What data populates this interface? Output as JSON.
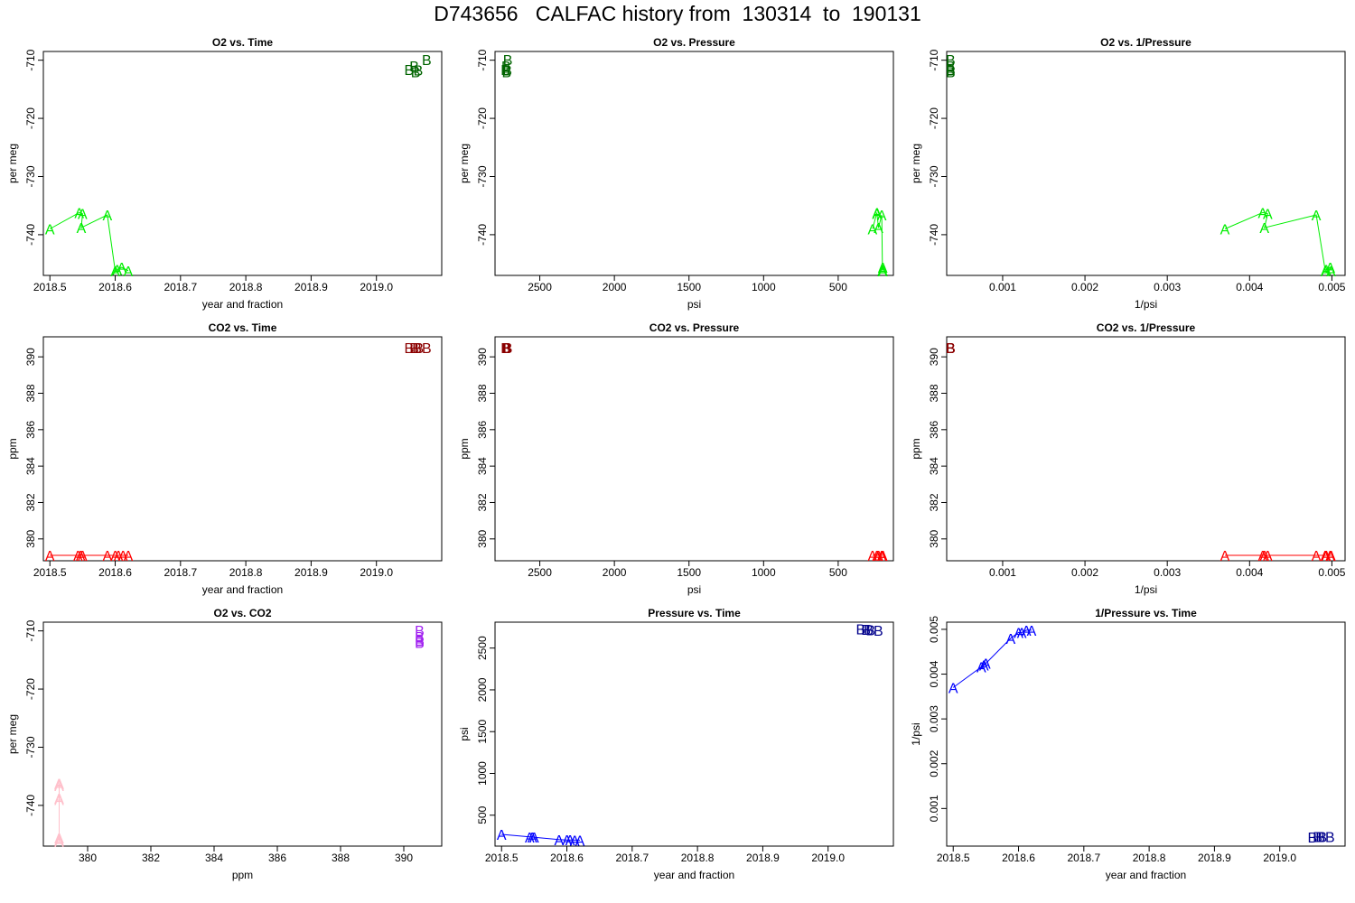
{
  "title": "D743656   CALFAC history from  130314  to  190131",
  "colors": {
    "o2_A": "#00ee00",
    "o2_B": "#006400",
    "co2_A": "#ff0000",
    "co2_B": "#8b0000",
    "o2co2_A": "#ffc0cb",
    "o2co2_B": "#a020f0",
    "p_A": "#0000ff",
    "p_B": "#00008b"
  },
  "chart_data": [
    {
      "type": "scatter",
      "title": "O2 vs. Time",
      "xlabel": "year and fraction",
      "ylabel": "per meg",
      "xlim": [
        2018.49,
        2019.1
      ],
      "ylim": [
        -747,
        -708.5
      ],
      "xticks": [
        "2018.5",
        "2018.6",
        "2018.7",
        "2018.8",
        "2018.9",
        "2019.0"
      ],
      "yticks": [
        "-710",
        "-720",
        "-730",
        "-740"
      ],
      "series": [
        {
          "label": "A",
          "color_key": "o2_A",
          "connected": true,
          "x": [
            2018.5,
            2018.545,
            2018.55,
            2018.548,
            2018.588,
            2018.6,
            2018.603,
            2018.61,
            2018.62
          ],
          "y": [
            -739.0,
            -736.2,
            -736.4,
            -738.8,
            -736.6,
            -746.2,
            -746.0,
            -745.6,
            -746.2
          ]
        },
        {
          "label": "B",
          "color_key": "o2_B",
          "connected": false,
          "x": [
            2019.05,
            2019.058,
            2019.06,
            2019.064,
            2019.077
          ],
          "y": [
            -711.6,
            -711.0,
            -712.0,
            -711.7,
            -709.9
          ]
        }
      ]
    },
    {
      "type": "scatter",
      "title": "O2 vs. Pressure",
      "xlabel": "psi",
      "ylabel": "per meg",
      "xlim": [
        2800,
        130
      ],
      "ylim": [
        -747,
        -708.5
      ],
      "xticks": [
        "2500",
        "2000",
        "1500",
        "1000",
        "500"
      ],
      "yticks": [
        "-710",
        "-720",
        "-730",
        "-740"
      ],
      "series": [
        {
          "label": "A",
          "color_key": "o2_A",
          "connected": true,
          "x": [
            270,
            240,
            240,
            230,
            208,
            203,
            203,
            201,
            201
          ],
          "y": [
            -739.0,
            -736.2,
            -736.4,
            -738.8,
            -736.6,
            -746.2,
            -746.0,
            -745.6,
            -746.2
          ]
        },
        {
          "label": "B",
          "color_key": "o2_B",
          "connected": false,
          "x": [
            2730,
            2725,
            2722,
            2718,
            2715
          ],
          "y": [
            -711.6,
            -711.0,
            -712.0,
            -711.7,
            -709.9
          ]
        }
      ]
    },
    {
      "type": "scatter",
      "title": "O2 vs. 1/Pressure",
      "xlabel": "1/psi",
      "ylabel": "per meg",
      "xlim": [
        0.00032,
        0.00516
      ],
      "ylim": [
        -747,
        -708.5
      ],
      "xticks": [
        "0.001",
        "0.002",
        "0.003",
        "0.004",
        "0.005"
      ],
      "yticks": [
        "-710",
        "-720",
        "-730",
        "-740"
      ],
      "series": [
        {
          "label": "A",
          "color_key": "o2_A",
          "connected": true,
          "x": [
            0.0037,
            0.00416,
            0.00422,
            0.00418,
            0.00481,
            0.00492,
            0.00493,
            0.00498,
            0.00499
          ],
          "y": [
            -739.0,
            -736.2,
            -736.4,
            -738.8,
            -736.6,
            -746.2,
            -746.0,
            -745.6,
            -746.2
          ]
        },
        {
          "label": "B",
          "color_key": "o2_B",
          "connected": false,
          "x": [
            0.000366,
            0.000367,
            0.000367,
            0.000368,
            0.000368
          ],
          "y": [
            -711.6,
            -711.0,
            -712.0,
            -711.7,
            -709.9
          ]
        }
      ]
    },
    {
      "type": "scatter",
      "title": "CO2 vs. Time",
      "xlabel": "year and fraction",
      "ylabel": "ppm",
      "xlim": [
        2018.49,
        2019.1
      ],
      "ylim": [
        378.8,
        391.1
      ],
      "xticks": [
        "2018.5",
        "2018.6",
        "2018.7",
        "2018.8",
        "2018.9",
        "2019.0"
      ],
      "yticks": [
        "380",
        "382",
        "384",
        "386",
        "388",
        "390"
      ],
      "series": [
        {
          "label": "A",
          "color_key": "co2_A",
          "connected": true,
          "x": [
            2018.5,
            2018.543,
            2018.547,
            2018.55,
            2018.588,
            2018.6,
            2018.605,
            2018.612,
            2018.62
          ],
          "y": [
            379.1,
            379.1,
            379.1,
            379.1,
            379.1,
            379.1,
            379.1,
            379.1,
            379.1
          ]
        },
        {
          "label": "B",
          "color_key": "co2_B",
          "connected": false,
          "x": [
            2019.05,
            2019.058,
            2019.062,
            2019.065,
            2019.077
          ],
          "y": [
            390.5,
            390.5,
            390.5,
            390.5,
            390.5
          ]
        }
      ]
    },
    {
      "type": "scatter",
      "title": "CO2 vs. Pressure",
      "xlabel": "psi",
      "ylabel": "ppm",
      "xlim": [
        2800,
        130
      ],
      "ylim": [
        378.8,
        391.1
      ],
      "xticks": [
        "2500",
        "2000",
        "1500",
        "1000",
        "500"
      ],
      "yticks": [
        "380",
        "382",
        "384",
        "386",
        "388",
        "390"
      ],
      "series": [
        {
          "label": "A",
          "color_key": "co2_A",
          "connected": true,
          "x": [
            270,
            240,
            240,
            230,
            208,
            203,
            203,
            201,
            201
          ],
          "y": [
            379.1,
            379.1,
            379.1,
            379.1,
            379.1,
            379.1,
            379.1,
            379.1,
            379.1
          ]
        },
        {
          "label": "B",
          "color_key": "co2_B",
          "connected": false,
          "x": [
            2730,
            2725,
            2722,
            2718,
            2715
          ],
          "y": [
            390.5,
            390.5,
            390.5,
            390.5,
            390.5
          ]
        }
      ]
    },
    {
      "type": "scatter",
      "title": "CO2 vs. 1/Pressure",
      "xlabel": "1/psi",
      "ylabel": "ppm",
      "xlim": [
        0.00032,
        0.00516
      ],
      "ylim": [
        378.8,
        391.1
      ],
      "xticks": [
        "0.001",
        "0.002",
        "0.003",
        "0.004",
        "0.005"
      ],
      "yticks": [
        "380",
        "382",
        "384",
        "386",
        "388",
        "390"
      ],
      "series": [
        {
          "label": "A",
          "color_key": "co2_A",
          "connected": true,
          "x": [
            0.0037,
            0.00416,
            0.00422,
            0.00418,
            0.00481,
            0.00492,
            0.00493,
            0.00498,
            0.00499
          ],
          "y": [
            379.1,
            379.1,
            379.1,
            379.1,
            379.1,
            379.1,
            379.1,
            379.1,
            379.1
          ]
        },
        {
          "label": "B",
          "color_key": "co2_B",
          "connected": false,
          "x": [
            0.000366,
            0.000367,
            0.000367,
            0.000368,
            0.000368
          ],
          "y": [
            390.5,
            390.5,
            390.5,
            390.5,
            390.5
          ]
        }
      ]
    },
    {
      "type": "scatter",
      "title": "O2 vs. CO2",
      "xlabel": "ppm",
      "ylabel": "per meg",
      "xlim": [
        378.6,
        391.2
      ],
      "ylim": [
        -747,
        -708.5
      ],
      "xticks": [
        "380",
        "382",
        "384",
        "386",
        "388",
        "390"
      ],
      "yticks": [
        "-710",
        "-720",
        "-730",
        "-740"
      ],
      "series": [
        {
          "label": "A",
          "color_key": "o2co2_A",
          "connected": true,
          "x": [
            379.1,
            379.1,
            379.1,
            379.1,
            379.1,
            379.1,
            379.1,
            379.1,
            379.1
          ],
          "y": [
            -739.0,
            -736.2,
            -736.4,
            -738.8,
            -736.6,
            -746.2,
            -746.0,
            -745.6,
            -746.2
          ]
        },
        {
          "label": "B",
          "color_key": "o2co2_B",
          "connected": false,
          "x": [
            390.5,
            390.5,
            390.5,
            390.5,
            390.5
          ],
          "y": [
            -711.6,
            -711.0,
            -712.0,
            -711.7,
            -709.9
          ]
        }
      ]
    },
    {
      "type": "scatter",
      "title": "Pressure vs. Time",
      "xlabel": "year and fraction",
      "ylabel": "psi",
      "xlim": [
        2018.49,
        2019.1
      ],
      "ylim": [
        130,
        2810
      ],
      "xticks": [
        "2018.5",
        "2018.6",
        "2018.7",
        "2018.8",
        "2018.9",
        "2019.0"
      ],
      "yticks": [
        "500",
        "1000",
        "1500",
        "2000",
        "2500"
      ],
      "series": [
        {
          "label": "A",
          "color_key": "p_A",
          "connected": true,
          "x": [
            2018.5,
            2018.543,
            2018.547,
            2018.55,
            2018.588,
            2018.6,
            2018.605,
            2018.612,
            2018.62
          ],
          "y": [
            270,
            240,
            238,
            236,
            208,
            203,
            203,
            201,
            201
          ]
        },
        {
          "label": "B",
          "color_key": "p_B",
          "connected": false,
          "x": [
            2019.05,
            2019.058,
            2019.062,
            2019.065,
            2019.077
          ],
          "y": [
            2730,
            2725,
            2722,
            2718,
            2715
          ]
        }
      ]
    },
    {
      "type": "scatter",
      "title": "1/Pressure vs. Time",
      "xlabel": "year and fraction",
      "ylabel": "1/psi",
      "xlim": [
        2018.49,
        2019.1
      ],
      "ylim": [
        0.00016,
        0.00516
      ],
      "xticks": [
        "2018.5",
        "2018.6",
        "2018.7",
        "2018.8",
        "2018.9",
        "2019.0"
      ],
      "yticks": [
        "0.001",
        "0.002",
        "0.003",
        "0.004",
        "0.005"
      ],
      "series": [
        {
          "label": "A",
          "color_key": "p_A",
          "connected": true,
          "x": [
            2018.5,
            2018.543,
            2018.547,
            2018.55,
            2018.588,
            2018.6,
            2018.605,
            2018.612,
            2018.62
          ],
          "y": [
            0.0037,
            0.00416,
            0.0042,
            0.00424,
            0.0048,
            0.00493,
            0.00493,
            0.00498,
            0.00498
          ]
        },
        {
          "label": "B",
          "color_key": "p_B",
          "connected": false,
          "x": [
            2019.05,
            2019.058,
            2019.062,
            2019.065,
            2019.077
          ],
          "y": [
            0.000366,
            0.000367,
            0.000367,
            0.000368,
            0.000368
          ]
        }
      ]
    }
  ]
}
